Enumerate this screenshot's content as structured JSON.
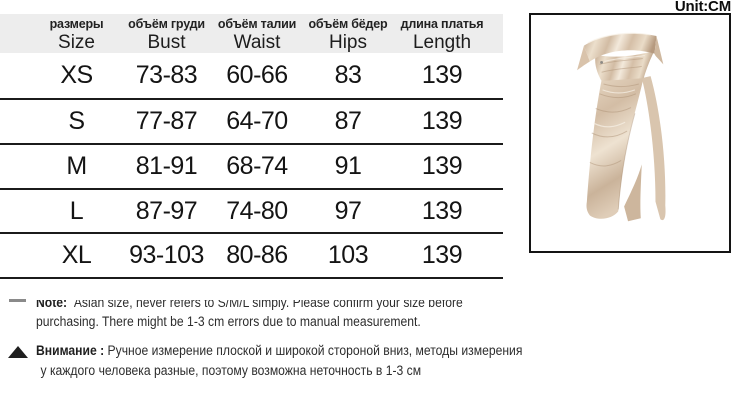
{
  "unit_label": "Unit:CM",
  "table": {
    "header": [
      {
        "ru": "размеры",
        "en": "Size"
      },
      {
        "ru": "объём груди",
        "en": "Bust"
      },
      {
        "ru": "объём талии",
        "en": "Waist"
      },
      {
        "ru": "объём бёдер",
        "en": "Hips"
      },
      {
        "ru": "длина платья",
        "en": "Length"
      }
    ],
    "rows": [
      [
        "XS",
        "73-83",
        "60-66",
        "83",
        "139"
      ],
      [
        "S",
        "77-87",
        "64-70",
        "87",
        "139"
      ],
      [
        "M",
        "81-91",
        "68-74",
        "91",
        "139"
      ],
      [
        "L",
        "87-97",
        "74-80",
        "97",
        "139"
      ],
      [
        "XL",
        "93-103",
        "80-86",
        "103",
        "139"
      ]
    ]
  },
  "notes": {
    "en": {
      "bold": "Note:",
      "lines": [
        "Asian size, never refers to S/M/L simply. Please confirm your size before",
        "purchasing. There might be 1-3 cm errors due to manual measurement."
      ]
    },
    "ru": {
      "bold": "Внимание :",
      "lines": [
        "Ручное измерение плоской и широкой стороной вниз, методы измерения",
        "у каждого человека разные, поэтому возможна неточность в 1-3 см"
      ]
    }
  },
  "product_image": {
    "description": "champagne satin off-shoulder maxi dress with high side slit"
  },
  "colors": {
    "header_bg": "#ededed",
    "table_line": "#1b1b1b",
    "text": "#1a1a1a",
    "satin_light": "#f2e9dd",
    "satin_mid": "#d8c3ac",
    "satin_dark": "#b49878"
  }
}
